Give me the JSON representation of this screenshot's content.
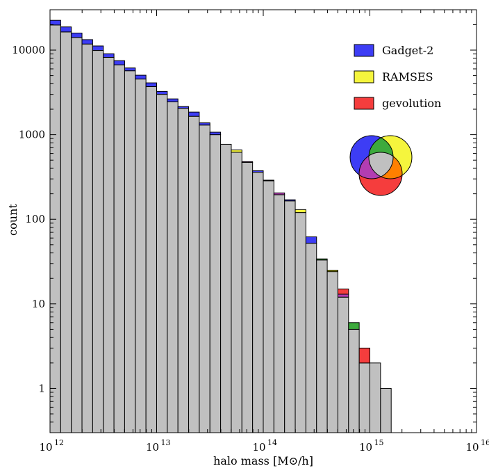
{
  "chart_data": {
    "type": "bar",
    "subtype": "stacked-histogram-log-log",
    "xlabel": "halo mass [M⊙/h]",
    "ylabel": "count",
    "xscale": "log",
    "yscale": "log",
    "xlim": [
      1000000000000.0,
      1e+16
    ],
    "ylim": [
      0.3,
      30000
    ],
    "x_ticks": [
      {
        "value": 1000000000000.0,
        "base": "10",
        "exp": "12"
      },
      {
        "value": 10000000000000.0,
        "base": "10",
        "exp": "13"
      },
      {
        "value": 100000000000000.0,
        "base": "10",
        "exp": "14"
      },
      {
        "value": 1000000000000000.0,
        "base": "10",
        "exp": "15"
      },
      {
        "value": 1e+16,
        "base": "10",
        "exp": "16"
      }
    ],
    "y_ticks": [
      {
        "value": 1,
        "label": "1"
      },
      {
        "value": 10,
        "label": "10"
      },
      {
        "value": 100,
        "label": "100"
      },
      {
        "value": 1000,
        "label": "1000"
      },
      {
        "value": 10000,
        "label": "10000"
      }
    ],
    "bins_per_decade": 10,
    "bin_edges_log10_start": 12.0,
    "legend": {
      "placement": "top-right",
      "entries": [
        {
          "label": "Gadget-2",
          "color": "#3d3df5"
        },
        {
          "label": "RAMSES",
          "color": "#f5f53d"
        },
        {
          "label": "gevolution",
          "color": "#f53d3d"
        }
      ]
    },
    "venn": {
      "blue": "#3d3df5",
      "yellow": "#f5f53d",
      "red": "#f53d3d",
      "blue_yellow": "#3daa3d",
      "blue_red": "#b23db2",
      "yellow_red": "#ff8000",
      "all": "#c0c0c0"
    },
    "series": [
      {
        "name": "Gadget-2",
        "color": "#3d3df5",
        "values": [
          22500,
          18800,
          15900,
          13300,
          11200,
          9050,
          7500,
          6150,
          5050,
          4100,
          3250,
          2650,
          2150,
          1850,
          1380,
          1070,
          770,
          620,
          480,
          375,
          290,
          205,
          170,
          120,
          62,
          34,
          24,
          13,
          6,
          2,
          2,
          1
        ]
      },
      {
        "name": "RAMSES",
        "values": [
          19800,
          16400,
          14100,
          11800,
          9900,
          8200,
          6700,
          5700,
          4550,
          3700,
          3000,
          2450,
          2050,
          1650,
          1300,
          1000,
          770,
          660,
          470,
          360,
          285,
          195,
          165,
          130,
          52,
          34,
          25,
          12,
          6,
          2,
          2,
          1
        ]
      },
      {
        "name": "gevolution",
        "values": [
          19800,
          16400,
          14100,
          11800,
          9900,
          8200,
          6700,
          5700,
          4550,
          3700,
          3000,
          2450,
          2050,
          1650,
          1300,
          1000,
          770,
          620,
          480,
          360,
          285,
          205,
          165,
          120,
          52,
          33,
          24,
          15,
          5,
          3,
          2,
          1
        ]
      }
    ],
    "stack_colors": {
      "common": "#c0c0c0",
      "Gadget-2+RAMSES": "#3daa3d",
      "Gadget-2+gevolution": "#b23db2",
      "RAMSES+gevolution": "#ff8000",
      "Gadget-2": "#3d3df5",
      "RAMSES": "#f5f53d",
      "gevolution": "#f53d3d"
    }
  }
}
